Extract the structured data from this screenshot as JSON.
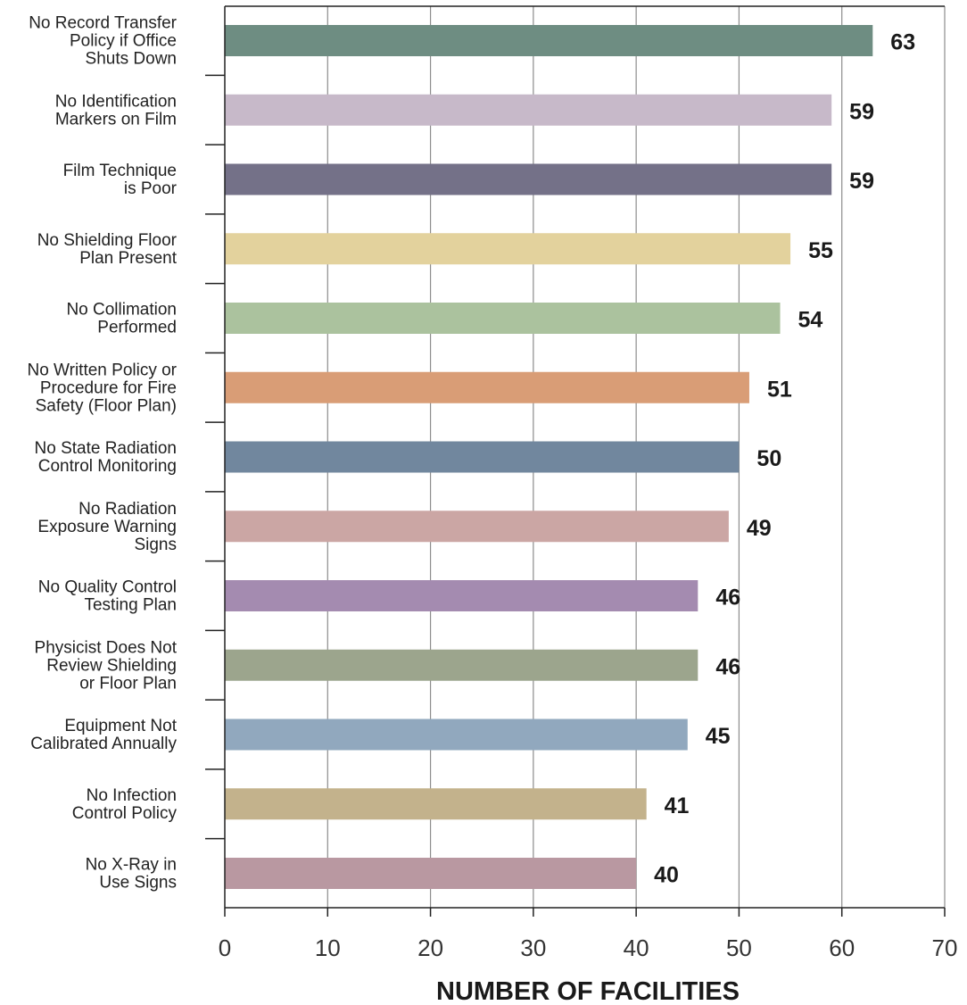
{
  "chart_data": {
    "type": "bar",
    "orientation": "horizontal",
    "categories": [
      [
        "No Record Transfer",
        "Policy if Office",
        "Shuts Down"
      ],
      [
        "No Identification",
        "Markers on Film"
      ],
      [
        "Film Technique",
        "is Poor"
      ],
      [
        "No Shielding Floor",
        "Plan Present"
      ],
      [
        "No Collimation",
        "Performed"
      ],
      [
        "No Written Policy or",
        "Procedure for Fire",
        "Safety (Floor Plan)"
      ],
      [
        "No State Radiation",
        "Control Monitoring"
      ],
      [
        "No Radiation",
        "Exposure Warning",
        "Signs"
      ],
      [
        "No Quality Control",
        "Testing Plan"
      ],
      [
        "Physicist Does Not",
        "Review Shielding",
        "or Floor Plan"
      ],
      [
        "Equipment Not",
        "Calibrated Annually"
      ],
      [
        "No Infection",
        "Control Policy"
      ],
      [
        "No X-Ray in",
        "Use Signs"
      ]
    ],
    "values": [
      63,
      59,
      59,
      55,
      54,
      51,
      50,
      49,
      46,
      46,
      45,
      41,
      40
    ],
    "value_labels": [
      "63",
      "59",
      "59",
      "55",
      "54",
      "51",
      "50",
      "49",
      "46",
      "46",
      "45",
      "41",
      "40"
    ],
    "colors": [
      "#6e8d82",
      "#c7b9c9",
      "#747188",
      "#e3d29d",
      "#abc29e",
      "#d99d76",
      "#71879e",
      "#cba6a4",
      "#a48bb0",
      "#9ca58d",
      "#91a8be",
      "#c3b28c",
      "#b998a1"
    ],
    "xlabel": "NUMBER OF FACILITIES",
    "ylabel": "",
    "title": "",
    "xlim": [
      0,
      70
    ],
    "xticks": [
      "0",
      "10",
      "20",
      "30",
      "40",
      "50",
      "60",
      "70"
    ],
    "grid": "vertical"
  }
}
